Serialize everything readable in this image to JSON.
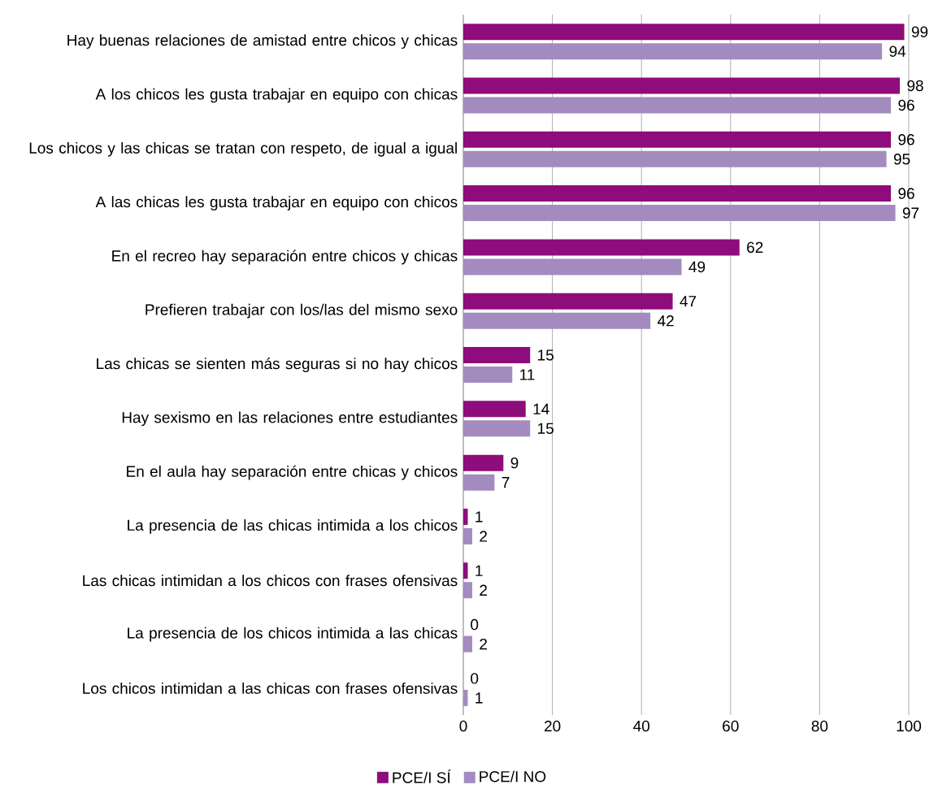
{
  "chart_data": {
    "type": "bar",
    "orientation": "horizontal",
    "categories": [
      "Hay buenas relaciones de amistad entre chicos y chicas",
      "A los chicos les gusta trabajar en equipo con chicas",
      "Los chicos y las chicas se tratan con respeto, de igual a igual",
      "A las chicas les gusta trabajar en equipo con chicos",
      "En el recreo hay separación entre chicos y chicas",
      "Prefieren trabajar con los/las del mismo sexo",
      "Las chicas se sienten más seguras si no hay chicos",
      "Hay sexismo en las relaciones entre estudiantes",
      "En el aula hay separación entre chicas y chicos",
      "La presencia de las chicas intimida a los chicos",
      "Las chicas intimidan a los chicos con frases ofensivas",
      "La presencia de los chicos intimida a las chicas",
      "Los chicos intimidan a las chicas con frases ofensivas"
    ],
    "series": [
      {
        "name": "PCE/I SÍ",
        "color": "#8e0c7b",
        "values": [
          99,
          98,
          96,
          96,
          62,
          47,
          15,
          14,
          9,
          1,
          1,
          0,
          0
        ]
      },
      {
        "name": "PCE/I NO",
        "color": "#a38bbf",
        "values": [
          94,
          96,
          95,
          97,
          49,
          42,
          11,
          15,
          7,
          2,
          2,
          2,
          1
        ]
      }
    ],
    "xlim": [
      0,
      100
    ],
    "xticks": [
      0,
      20,
      40,
      60,
      80,
      100
    ],
    "grid": "x",
    "legend": "bottom",
    "data_labels": true
  }
}
